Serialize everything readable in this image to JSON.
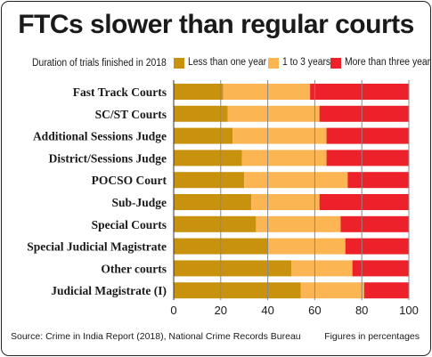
{
  "chart_data": {
    "type": "bar",
    "orientation": "horizontal",
    "stacked": true,
    "title": "FTCs slower than regular courts",
    "subtitle": "Duration of trials finished in 2018",
    "categories": [
      "Fast Track Courts",
      "SC/ST Courts",
      "Additional Sessions Judge",
      "District/Sessions Judge",
      "POCSO Court",
      "Sub-Judge",
      "Special Courts",
      "Special Judicial Magistrate",
      "Other courts",
      "Judicial Magistrate (I)"
    ],
    "series": [
      {
        "name": "Less than one year",
        "color": "#c8920f",
        "values": [
          21,
          23,
          25,
          29,
          30,
          33,
          35,
          40,
          50,
          54
        ]
      },
      {
        "name": "1 to 3 years",
        "color": "#fbb552",
        "values": [
          37,
          39,
          40,
          36,
          44,
          29,
          36,
          33,
          26,
          27
        ]
      },
      {
        "name": "More than three years",
        "color": "#ec2129",
        "values": [
          42,
          38,
          35,
          35,
          26,
          38,
          29,
          27,
          24,
          19
        ]
      }
    ],
    "xlim": [
      0,
      100
    ],
    "xticks": [
      0,
      20,
      40,
      60,
      80,
      100
    ],
    "grid": true,
    "legend_position": "top",
    "source": "Source: Crime in India Report (2018), National Crime Records Bureau",
    "note": "Figures in percentages"
  }
}
